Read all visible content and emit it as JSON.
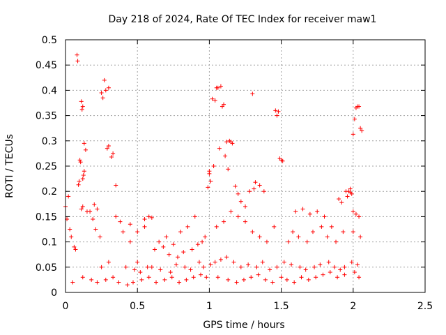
{
  "chart_data": {
    "type": "scatter",
    "title": "Day 218 of 2024, Rate Of TEC Index for receiver maw1",
    "xlabel": "GPS time / hours",
    "ylabel": "ROTI / TECUs",
    "xlim": [
      0,
      2.5
    ],
    "ylim": [
      0,
      0.5
    ],
    "xticks": [
      0,
      0.5,
      1,
      1.5,
      2,
      2.5
    ],
    "xtick_labels": [
      "0",
      "0.5",
      "1",
      "1.5",
      "2",
      "2.5"
    ],
    "yticks": [
      0,
      0.05,
      0.1,
      0.15,
      0.2,
      0.25,
      0.3,
      0.35,
      0.4,
      0.45,
      0.5
    ],
    "ytick_labels": [
      "0",
      "0.05",
      "0.1",
      "0.15",
      "0.2",
      "0.25",
      "0.3",
      "0.35",
      "0.4",
      "0.45",
      "0.5"
    ],
    "grid": true,
    "marker": "+",
    "color": "#ff0000",
    "series": [
      {
        "name": "ROTI",
        "x": [
          0.08,
          0.085,
          0.11,
          0.12,
          0.115,
          0.13,
          0.1,
          0.105,
          0.14,
          0.13,
          0.125,
          0.12,
          0.095,
          0.09,
          0.12,
          0.11,
          0.2,
          0.22,
          0.25,
          0.27,
          0.3,
          0.26,
          0.28,
          0.33,
          0.32,
          0.35,
          0.29,
          0.3,
          0.05,
          0.02,
          0.0,
          0.01,
          0.03,
          0.04,
          0.06,
          0.07,
          0.15,
          0.17,
          0.19,
          0.21,
          0.24,
          0.35,
          0.38,
          0.45,
          0.5,
          0.55,
          0.58,
          0.6,
          1.0,
          1.02,
          1.04,
          1.05,
          1.06,
          1.08,
          1.09,
          1.1,
          1.12,
          1.14,
          1.15,
          1.16,
          1.03,
          1.01,
          0.99,
          1.0,
          1.07,
          1.11,
          1.13,
          1.18,
          1.2,
          1.22,
          1.25,
          1.28,
          1.3,
          1.32,
          1.35,
          1.38,
          1.31,
          1.46,
          1.48,
          1.47,
          1.5,
          1.51,
          1.49,
          1.6,
          1.65,
          1.7,
          1.75,
          1.8,
          1.9,
          1.92,
          1.95,
          1.97,
          1.98,
          1.99,
          2.0,
          2.01,
          2.02,
          2.03,
          2.04,
          2.05,
          2.06,
          2.0,
          2.02,
          2.04,
          1.98,
          1.96,
          0.7,
          0.9,
          0.85,
          0.8,
          0.75,
          0.65,
          0.55,
          0.45,
          0.4,
          0.62,
          0.68,
          0.72,
          0.78,
          0.82,
          0.88,
          0.92,
          0.95,
          0.97,
          1.05,
          1.1,
          1.15,
          1.2,
          1.25,
          1.3,
          1.35,
          1.4,
          1.45,
          1.55,
          1.58,
          1.62,
          1.68,
          1.72,
          1.78,
          1.82,
          1.85,
          1.88,
          1.93,
          2.05,
          2.0,
          0.3,
          0.25,
          0.5,
          0.6,
          0.42,
          0.48,
          0.52,
          0.57,
          0.66,
          0.73,
          0.77,
          0.83,
          0.87,
          0.93,
          0.96,
          1.01,
          1.04,
          1.08,
          1.12,
          1.17,
          1.22,
          1.27,
          1.33,
          1.37,
          1.42,
          1.47,
          1.52,
          1.57,
          1.63,
          1.67,
          1.73,
          1.77,
          1.83,
          1.87,
          1.91,
          1.94,
          1.99,
          2.03,
          0.12,
          0.18,
          0.22,
          0.28,
          0.33,
          0.37,
          0.43,
          0.47,
          0.53,
          0.58,
          0.63,
          0.69,
          0.74,
          0.79,
          0.84,
          0.89,
          0.94,
          0.98,
          1.06,
          1.13,
          1.19,
          1.24,
          1.29,
          1.34,
          1.39,
          1.44,
          1.5,
          1.54,
          1.59,
          1.64,
          1.69,
          1.74,
          1.79,
          1.84,
          1.89,
          1.94,
          2.01,
          2.04
        ],
        "y": [
          0.47,
          0.458,
          0.378,
          0.368,
          0.362,
          0.295,
          0.262,
          0.258,
          0.282,
          0.24,
          0.232,
          0.225,
          0.22,
          0.213,
          0.17,
          0.165,
          0.174,
          0.165,
          0.395,
          0.42,
          0.405,
          0.385,
          0.4,
          0.275,
          0.268,
          0.212,
          0.285,
          0.29,
          0.02,
          0.19,
          0.17,
          0.145,
          0.125,
          0.11,
          0.09,
          0.085,
          0.16,
          0.16,
          0.145,
          0.125,
          0.11,
          0.15,
          0.14,
          0.135,
          0.12,
          0.145,
          0.15,
          0.148,
          0.24,
          0.383,
          0.38,
          0.405,
          0.405,
          0.408,
          0.368,
          0.372,
          0.298,
          0.3,
          0.298,
          0.295,
          0.25,
          0.22,
          0.208,
          0.235,
          0.285,
          0.27,
          0.244,
          0.21,
          0.195,
          0.18,
          0.17,
          0.2,
          0.393,
          0.218,
          0.212,
          0.2,
          0.205,
          0.36,
          0.358,
          0.35,
          0.262,
          0.26,
          0.265,
          0.16,
          0.165,
          0.155,
          0.16,
          0.15,
          0.185,
          0.178,
          0.2,
          0.2,
          0.198,
          0.195,
          0.313,
          0.343,
          0.365,
          0.368,
          0.368,
          0.325,
          0.32,
          0.16,
          0.155,
          0.15,
          0.205,
          0.19,
          0.11,
          0.15,
          0.13,
          0.12,
          0.095,
          0.1,
          0.13,
          0.1,
          0.12,
          0.085,
          0.09,
          0.075,
          0.07,
          0.08,
          0.085,
          0.095,
          0.1,
          0.11,
          0.13,
          0.14,
          0.16,
          0.15,
          0.14,
          0.12,
          0.11,
          0.1,
          0.13,
          0.1,
          0.12,
          0.11,
          0.1,
          0.12,
          0.13,
          0.11,
          0.13,
          0.1,
          0.12,
          0.11,
          0.12,
          0.06,
          0.05,
          0.06,
          0.05,
          0.05,
          0.045,
          0.04,
          0.05,
          0.045,
          0.04,
          0.055,
          0.05,
          0.045,
          0.06,
          0.05,
          0.055,
          0.06,
          0.065,
          0.07,
          0.06,
          0.05,
          0.055,
          0.05,
          0.06,
          0.045,
          0.05,
          0.06,
          0.055,
          0.05,
          0.045,
          0.05,
          0.055,
          0.06,
          0.05,
          0.045,
          0.05,
          0.06,
          0.055,
          0.03,
          0.025,
          0.02,
          0.025,
          0.03,
          0.02,
          0.015,
          0.02,
          0.025,
          0.03,
          0.02,
          0.025,
          0.03,
          0.02,
          0.025,
          0.03,
          0.035,
          0.03,
          0.03,
          0.025,
          0.02,
          0.025,
          0.03,
          0.035,
          0.025,
          0.02,
          0.03,
          0.025,
          0.02,
          0.03,
          0.025,
          0.03,
          0.035,
          0.04,
          0.03,
          0.035,
          0.04,
          0.03
        ]
      }
    ]
  }
}
